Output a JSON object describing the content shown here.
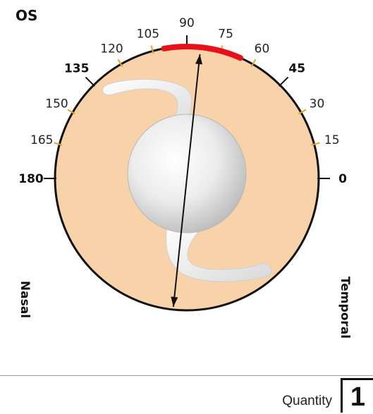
{
  "eye_label": "OS",
  "angle_labels": [
    {
      "text": "0",
      "deg": 0,
      "major": true
    },
    {
      "text": "15",
      "deg": 15,
      "major": false
    },
    {
      "text": "30",
      "deg": 30,
      "major": false
    },
    {
      "text": "45",
      "deg": 45,
      "major": true
    },
    {
      "text": "60",
      "deg": 60,
      "major": false
    },
    {
      "text": "75",
      "deg": 75,
      "major": false
    },
    {
      "text": "90",
      "deg": 90,
      "major": true
    },
    {
      "text": "105",
      "deg": 105,
      "major": false
    },
    {
      "text": "120",
      "deg": 120,
      "major": false
    },
    {
      "text": "135",
      "deg": 135,
      "major": true
    },
    {
      "text": "150",
      "deg": 150,
      "major": false
    },
    {
      "text": "165",
      "deg": 165,
      "major": false
    },
    {
      "text": "180",
      "deg": 180,
      "major": true
    }
  ],
  "side_labels": {
    "left": "Nasal",
    "right": "Temporal"
  },
  "highlight_arc_deg": [
    66,
    100
  ],
  "axis_deg": 84,
  "colors": {
    "cornea_fill": "#f8d2a8",
    "highlight_arc": "#e8101a",
    "minor_tick": "#f0a020",
    "major_tick": "#111111"
  },
  "footer": {
    "quantity_label": "Quantity",
    "quantity_value": "1"
  }
}
